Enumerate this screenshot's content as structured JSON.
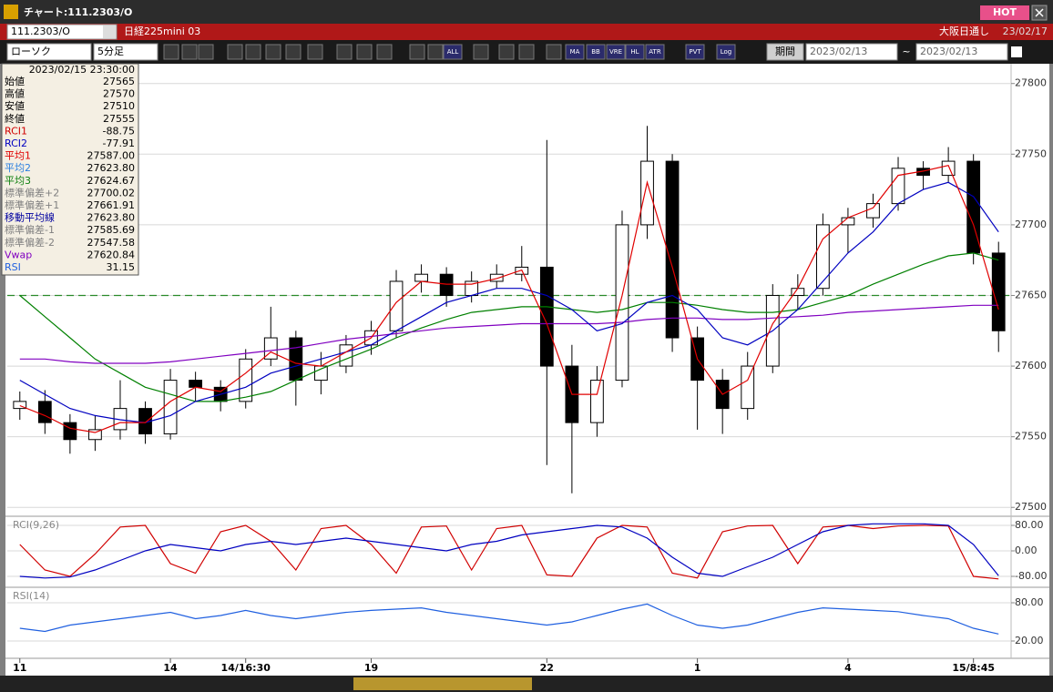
{
  "window": {
    "title": "チャート:111.2303/O",
    "badge": "HOT"
  },
  "header": {
    "symbol": "111.2303/O",
    "name": "日経225mini 03",
    "session": "大阪日通し",
    "date": "23/02/17"
  },
  "toolbar": {
    "chart_style": "ローソク",
    "interval": "5分足",
    "buttons": [
      "ALL",
      "MA",
      "BB",
      "VRE",
      "HL",
      "ATR",
      "PVT",
      "Log"
    ],
    "period_label": "期間",
    "from_date": "2023/02/13",
    "separator": "~",
    "to_date": "2023/02/13"
  },
  "info_panel": {
    "timestamp": "2023/02/15 23:30:00",
    "rows": [
      {
        "label": "始値",
        "value": "27565",
        "color": "#000000"
      },
      {
        "label": "高値",
        "value": "27570",
        "color": "#000000"
      },
      {
        "label": "安値",
        "value": "27510",
        "color": "#000000"
      },
      {
        "label": "終値",
        "value": "27555",
        "color": "#000000"
      },
      {
        "label": "RCI1",
        "value": "-88.75",
        "color": "#d00000"
      },
      {
        "label": "RCI2",
        "value": "-77.91",
        "color": "#0000c0"
      },
      {
        "label": "平均1",
        "value": "27587.00",
        "color": "#e00000"
      },
      {
        "label": "平均2",
        "value": "27623.80",
        "color": "#2a7fe0"
      },
      {
        "label": "平均3",
        "value": "27624.67",
        "color": "#108010"
      },
      {
        "label": "標準偏差+2",
        "value": "27700.02",
        "color": "#808080"
      },
      {
        "label": "標準偏差+1",
        "value": "27661.91",
        "color": "#808080"
      },
      {
        "label": "移動平均線",
        "value": "27623.80",
        "color": "#0000a0"
      },
      {
        "label": "標準偏差-1",
        "value": "27585.69",
        "color": "#808080"
      },
      {
        "label": "標準偏差-2",
        "value": "27547.58",
        "color": "#808080"
      },
      {
        "label": "Vwap",
        "value": "27620.84",
        "color": "#8000c0"
      },
      {
        "label": "RSI",
        "value": "31.15",
        "color": "#2060e0"
      }
    ]
  },
  "chart_data": [
    {
      "type": "candlestick",
      "categories": [
        "11",
        null,
        null,
        null,
        null,
        null,
        "14",
        null,
        null,
        "14/16:30",
        null,
        null,
        null,
        null,
        "19",
        null,
        null,
        null,
        null,
        null,
        null,
        "22",
        null,
        null,
        null,
        null,
        null,
        "1",
        null,
        null,
        null,
        null,
        null,
        "4",
        null,
        null,
        null,
        null,
        "15/8:45",
        null
      ],
      "open": [
        27570,
        27575,
        27560,
        27548,
        27555,
        27570,
        27552,
        27590,
        27585,
        27575,
        27605,
        27620,
        27590,
        27600,
        27615,
        27625,
        27660,
        27665,
        27650,
        27660,
        27665,
        27670,
        27600,
        27560,
        27590,
        27700,
        27745,
        27620,
        27590,
        27570,
        27600,
        27650,
        27655,
        27700,
        27705,
        27715,
        27740,
        27735,
        27745,
        27680
      ],
      "high": [
        27582,
        27583,
        27566,
        27565,
        27590,
        27575,
        27598,
        27596,
        27590,
        27612,
        27642,
        27625,
        27610,
        27622,
        27632,
        27668,
        27672,
        27670,
        27667,
        27672,
        27685,
        27760,
        27615,
        27600,
        27710,
        27770,
        27750,
        27628,
        27598,
        27610,
        27658,
        27665,
        27708,
        27712,
        27722,
        27748,
        27745,
        27755,
        27750,
        27688
      ],
      "low": [
        27562,
        27552,
        27538,
        27540,
        27548,
        27545,
        27548,
        27575,
        27568,
        27570,
        27600,
        27572,
        27580,
        27595,
        27608,
        27620,
        27652,
        27642,
        27645,
        27655,
        27660,
        27530,
        27510,
        27550,
        27585,
        27690,
        27610,
        27555,
        27552,
        27562,
        27595,
        27640,
        27650,
        27680,
        27698,
        27710,
        27725,
        27730,
        27672,
        27610
      ],
      "close": [
        27575,
        27560,
        27548,
        27555,
        27570,
        27552,
        27590,
        27585,
        27575,
        27605,
        27620,
        27590,
        27600,
        27615,
        27625,
        27660,
        27665,
        27650,
        27660,
        27665,
        27670,
        27600,
        27560,
        27590,
        27700,
        27745,
        27620,
        27590,
        27570,
        27600,
        27650,
        27655,
        27700,
        27705,
        27715,
        27740,
        27735,
        27745,
        27680,
        27625
      ],
      "up_color": "#ffffff",
      "down_color": "#000000",
      "series": [
        {
          "color": "#008000",
          "values": [
            27650,
            27635,
            27620,
            27605,
            27595,
            27585,
            27580,
            27575,
            27575,
            27578,
            27582,
            27590,
            27598,
            27605,
            27612,
            27620,
            27627,
            27633,
            27638,
            27640,
            27642,
            27642,
            27640,
            27638,
            27640,
            27645,
            27645,
            27643,
            27640,
            27638,
            27638,
            27640,
            27645,
            27650,
            27658,
            27665,
            27672,
            27678,
            27680,
            27675
          ]
        },
        {
          "color": "#8000c0",
          "values": [
            27605,
            27605,
            27603,
            27602,
            27602,
            27602,
            27603,
            27605,
            27607,
            27609,
            27611,
            27613,
            27616,
            27619,
            27621,
            27623,
            27625,
            27627,
            27628,
            27629,
            27630,
            27630,
            27630,
            27630,
            27631,
            27633,
            27634,
            27634,
            27633,
            27633,
            27634,
            27635,
            27636,
            27638,
            27639,
            27640,
            27641,
            27642,
            27643,
            27643
          ]
        },
        {
          "color": "#0000c0",
          "values": [
            27590,
            27580,
            27570,
            27565,
            27562,
            27560,
            27565,
            27575,
            27580,
            27585,
            27595,
            27600,
            27605,
            27610,
            27615,
            27625,
            27635,
            27645,
            27650,
            27655,
            27655,
            27650,
            27640,
            27625,
            27630,
            27645,
            27650,
            27640,
            27620,
            27615,
            27625,
            27640,
            27660,
            27680,
            27695,
            27715,
            27725,
            27730,
            27720,
            27695
          ]
        },
        {
          "color": "#e00000",
          "values": [
            27572,
            27565,
            27556,
            27553,
            27560,
            27560,
            27575,
            27585,
            27582,
            27595,
            27610,
            27602,
            27600,
            27610,
            27620,
            27645,
            27660,
            27658,
            27658,
            27662,
            27668,
            27630,
            27580,
            27580,
            27650,
            27730,
            27670,
            27605,
            27580,
            27590,
            27630,
            27655,
            27690,
            27705,
            27712,
            27735,
            27738,
            27742,
            27700,
            27640
          ]
        }
      ],
      "reference_line": 27650,
      "reference_color": "#2a8a2a",
      "ylim": [
        27495,
        27814
      ],
      "yticks": [
        27500,
        27550,
        27600,
        27650,
        27700,
        27750,
        27800
      ]
    },
    {
      "type": "line",
      "label": "RCI(9,26)",
      "series": [
        {
          "color": "#d00000",
          "values": [
            20,
            -60,
            -80,
            -10,
            75,
            80,
            -40,
            -70,
            60,
            80,
            30,
            -60,
            70,
            80,
            20,
            -70,
            75,
            78,
            -60,
            70,
            80,
            -75,
            -80,
            40,
            80,
            75,
            -70,
            -85,
            60,
            78,
            80,
            -40,
            75,
            80,
            70,
            78,
            80,
            78,
            -80,
            -88
          ]
        },
        {
          "color": "#0000c0",
          "values": [
            -80,
            -85,
            -82,
            -60,
            -30,
            0,
            20,
            10,
            0,
            20,
            30,
            20,
            30,
            40,
            30,
            20,
            10,
            0,
            20,
            30,
            50,
            60,
            70,
            80,
            75,
            40,
            -20,
            -70,
            -80,
            -50,
            -20,
            20,
            60,
            80,
            85,
            85,
            85,
            80,
            20,
            -78
          ]
        }
      ],
      "ylim": [
        -100,
        100
      ],
      "yticks": [
        {
          "value": 80,
          "label": "80.00"
        },
        {
          "value": 0,
          "label": "0.00"
        },
        {
          "value": -80,
          "label": "-80.00"
        }
      ]
    },
    {
      "type": "line",
      "label": "RSI(14)",
      "series": [
        {
          "color": "#2060e0",
          "values": [
            40,
            35,
            45,
            50,
            55,
            60,
            65,
            55,
            60,
            68,
            60,
            55,
            60,
            65,
            68,
            70,
            72,
            65,
            60,
            55,
            50,
            45,
            50,
            60,
            70,
            78,
            60,
            45,
            40,
            45,
            55,
            65,
            72,
            70,
            68,
            66,
            60,
            55,
            40,
            31
          ]
        }
      ],
      "ylim": [
        0,
        100
      ],
      "yticks": [
        {
          "value": 80,
          "label": "80.00"
        },
        {
          "value": 20,
          "label": "20.00"
        }
      ]
    }
  ]
}
